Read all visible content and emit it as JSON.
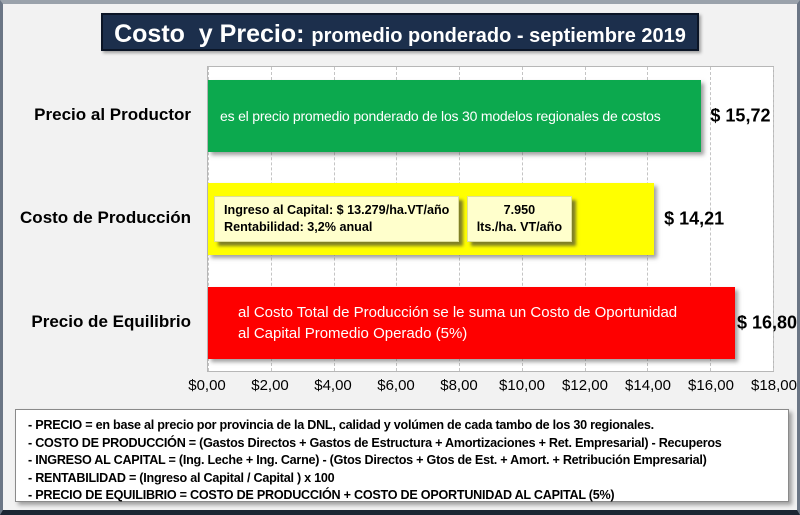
{
  "title": {
    "main": "Costo  y Precio: ",
    "subtitle": "promedio ponderado - septiembre 2019"
  },
  "chart_data": {
    "type": "bar",
    "orientation": "horizontal",
    "title": "Costo y Precio: promedio ponderado - septiembre 2019",
    "categories": [
      "Precio al Productor",
      "Costo de Producción",
      "Precio de Equilibrio"
    ],
    "values": [
      15.72,
      14.21,
      16.8
    ],
    "value_labels": [
      "$ 15,72",
      "$ 14,21",
      "$ 16,80"
    ],
    "bar_colors": [
      "#0ca94e",
      "#ffff00",
      "#fe0000"
    ],
    "xlim": [
      0,
      18
    ],
    "x_tick_labels": [
      "$0,00",
      "$2,00",
      "$4,00",
      "$6,00",
      "$8,00",
      "$10,00",
      "$12,00",
      "$14,00",
      "$16,00",
      "$18,00"
    ],
    "grid": "vertical-dashed",
    "legend": "none"
  },
  "bar_annotations": {
    "producer_price": "es el precio promedio ponderado de los 30 modelos regionales de costos",
    "equilibrium_line1": "al Costo Total de Producción se le suma un Costo de Oportunidad",
    "equilibrium_line2": "al Capital Promedio Operado (5%)"
  },
  "production_cost_boxes": {
    "capital": {
      "line1": "Ingreso al Capital: $ 13.279/ha.VT/año",
      "line2": "Rentabilidad: 3,2% anual"
    },
    "liters": {
      "line1": "7.950",
      "line2": "lts./ha. VT/año"
    }
  },
  "notes": [
    "- PRECIO = en base al precio por provincia de la DNL, calidad y volúmen de cada tambo de los 30 regionales.",
    "- COSTO DE PRODUCCIÓN = (Gastos Directos + Gastos de Estructura + Amortizaciones + Ret. Empresarial) - Recuperos",
    "- INGRESO AL CAPITAL = (Ing. Leche + Ing. Carne) - (Gtos Directos + Gtos de Est. + Amort. + Retribución Empresarial)",
    "- RENTABILIDAD = (Ingreso al Capital / Capital ) x 100",
    "- PRECIO DE EQUILIBRIO = COSTO DE PRODUCCIÓN + COSTO DE OPORTUNIDAD AL CAPITAL (5%)"
  ],
  "colors": {
    "background": "#f2f2f2",
    "title_bg": "#1c2f4c",
    "title_text": "#ffffff",
    "green_bar": "#0ca94e",
    "yellow_bar": "#ffff00",
    "red_bar": "#fe0000",
    "cream_box": "#ffffcc",
    "plot_bg": "#ffffff",
    "gridline": "#c4c4c4",
    "text": "#000000"
  }
}
